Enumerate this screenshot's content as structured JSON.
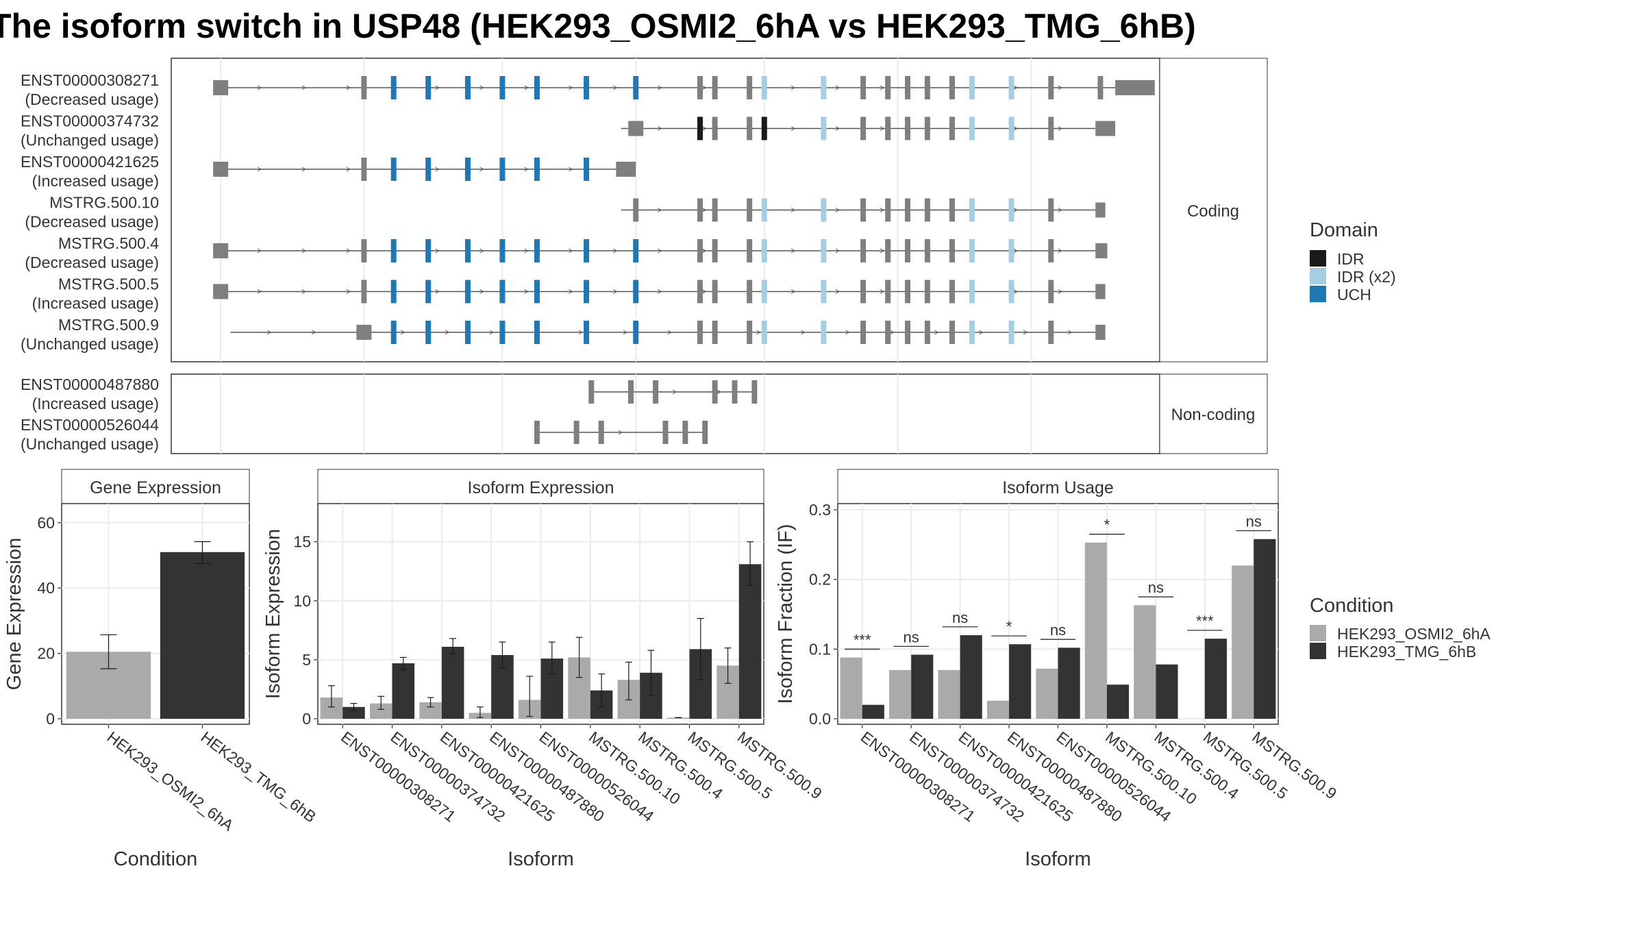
{
  "title": "The isoform switch in USP48 (HEK293_OSMI2_6hA vs HEK293_TMG_6hB)",
  "colors": {
    "IDR": "#1a1a1a",
    "IDR (x2)": "#a6cee3",
    "UCH": "#1f78b4",
    "exon": "#7f7f7f",
    "cond1": "#aaaaaa",
    "cond2": "#333333"
  },
  "structure": {
    "coding_strip": "Coding",
    "noncoding_strip": "Non-coding",
    "coding": [
      {
        "id": "ENST00000308271",
        "usage": "(Decreased usage)",
        "x0": 0.05,
        "x1": 0.955,
        "utr5": true,
        "utr3": 0.04,
        "pattern": "full"
      },
      {
        "id": "ENST00000374732",
        "usage": "(Unchanged usage)",
        "x0": 0.455,
        "x1": 0.935,
        "utr5": true,
        "utr3": 0.02,
        "pattern": "short"
      },
      {
        "id": "ENST00000421625",
        "usage": "(Increased usage)",
        "x0": 0.05,
        "x1": 0.45,
        "utr5": true,
        "utr3": 0.02,
        "pattern": "front"
      },
      {
        "id": "MSTRG.500.10",
        "usage": "(Decreased usage)",
        "x0": 0.455,
        "x1": 0.935,
        "utr5": false,
        "utr3": 0.01,
        "pattern": "mid"
      },
      {
        "id": "MSTRG.500.4",
        "usage": "(Decreased usage)",
        "x0": 0.05,
        "x1": 0.935,
        "utr5": true,
        "utr3": 0.012,
        "pattern": "full"
      },
      {
        "id": "MSTRG.500.5",
        "usage": "(Increased usage)",
        "x0": 0.05,
        "x1": 0.935,
        "utr5": true,
        "utr3": 0.01,
        "pattern": "full"
      },
      {
        "id": "MSTRG.500.9",
        "usage": "(Unchanged usage)",
        "x0": 0.06,
        "x1": 0.935,
        "utr5": true,
        "utr3": 0.01,
        "pattern": "full"
      }
    ],
    "noncoding": [
      {
        "id": "ENST00000487880",
        "usage": "(Increased usage)",
        "x0": 0.425,
        "x1": 0.59
      },
      {
        "id": "ENST00000526044",
        "usage": "(Unchanged usage)",
        "x0": 0.37,
        "x1": 0.54
      }
    ]
  },
  "legend_domain": {
    "title": "Domain",
    "items": [
      {
        "label": "IDR",
        "color": "#1a1a1a"
      },
      {
        "label": "IDR (x2)",
        "color": "#a6cee3"
      },
      {
        "label": "UCH",
        "color": "#1f78b4"
      }
    ]
  },
  "legend_condition": {
    "title": "Condition",
    "items": [
      {
        "label": "HEK293_OSMI2_6hA",
        "color": "#aaaaaa"
      },
      {
        "label": "HEK293_TMG_6hB",
        "color": "#333333"
      }
    ]
  },
  "chart_data": [
    {
      "type": "bar",
      "panel": "Gene Expression",
      "xlabel": "Condition",
      "ylabel": "Gene Expression",
      "ylim": [
        0,
        65
      ],
      "yticks": [
        0,
        20,
        40,
        60
      ],
      "categories": [
        "HEK293_OSMI2_6hA",
        "HEK293_TMG_6hB"
      ],
      "values": [
        20.5,
        51
      ],
      "errors": [
        [
          15.3,
          25.7
        ],
        [
          47.5,
          54.2
        ]
      ]
    },
    {
      "type": "bar",
      "panel": "Isoform Expression",
      "xlabel": "Isoform",
      "ylabel": "Isoform Expression",
      "ylim": [
        0,
        18
      ],
      "yticks": [
        0,
        5,
        10,
        15
      ],
      "categories": [
        "ENST00000308271",
        "ENST00000374732",
        "ENST00000421625",
        "ENST00000487880",
        "ENST00000526044",
        "MSTRG.500.10",
        "MSTRG.500.4",
        "MSTRG.500.5",
        "MSTRG.500.9"
      ],
      "series": [
        {
          "name": "HEK293_OSMI2_6hA",
          "values": [
            1.8,
            1.3,
            1.4,
            0.5,
            1.6,
            5.2,
            3.3,
            0.1,
            4.5
          ],
          "errors": [
            [
              1.0,
              2.8
            ],
            [
              0.8,
              1.9
            ],
            [
              1.0,
              1.8
            ],
            [
              0.1,
              1.0
            ],
            [
              0.2,
              3.6
            ],
            [
              3.5,
              6.9
            ],
            [
              1.6,
              4.8
            ],
            [
              0.1,
              0.1
            ],
            [
              3.0,
              6.0
            ]
          ]
        },
        {
          "name": "HEK293_TMG_6hB",
          "values": [
            1.0,
            4.7,
            6.1,
            5.4,
            5.1,
            2.4,
            3.9,
            5.9,
            13.1
          ],
          "errors": [
            [
              0.7,
              1.3
            ],
            [
              4.2,
              5.2
            ],
            [
              5.5,
              6.8
            ],
            [
              4.3,
              6.5
            ],
            [
              3.8,
              6.5
            ],
            [
              1.0,
              3.8
            ],
            [
              2.0,
              5.8
            ],
            [
              3.3,
              8.5
            ],
            [
              11.3,
              15.0
            ]
          ]
        }
      ]
    },
    {
      "type": "bar",
      "panel": "Isoform Usage",
      "xlabel": "Isoform",
      "ylabel": "Isoform Fraction (IF)",
      "ylim": [
        0,
        0.305
      ],
      "yticks": [
        0.0,
        0.1,
        0.2,
        0.3
      ],
      "categories": [
        "ENST00000308271",
        "ENST00000374732",
        "ENST00000421625",
        "ENST00000487880",
        "ENST00000526044",
        "MSTRG.500.10",
        "MSTRG.500.4",
        "MSTRG.500.5",
        "MSTRG.500.9"
      ],
      "series": [
        {
          "name": "HEK293_OSMI2_6hA",
          "values": [
            0.088,
            0.07,
            0.07,
            0.026,
            0.072,
            0.253,
            0.163,
            0.0,
            0.22
          ]
        },
        {
          "name": "HEK293_TMG_6hB",
          "values": [
            0.02,
            0.092,
            0.12,
            0.107,
            0.102,
            0.049,
            0.078,
            0.115,
            0.258
          ]
        }
      ],
      "significance": [
        "***",
        "ns",
        "ns",
        "*",
        "ns",
        "*",
        "ns",
        "***",
        "ns"
      ]
    }
  ]
}
